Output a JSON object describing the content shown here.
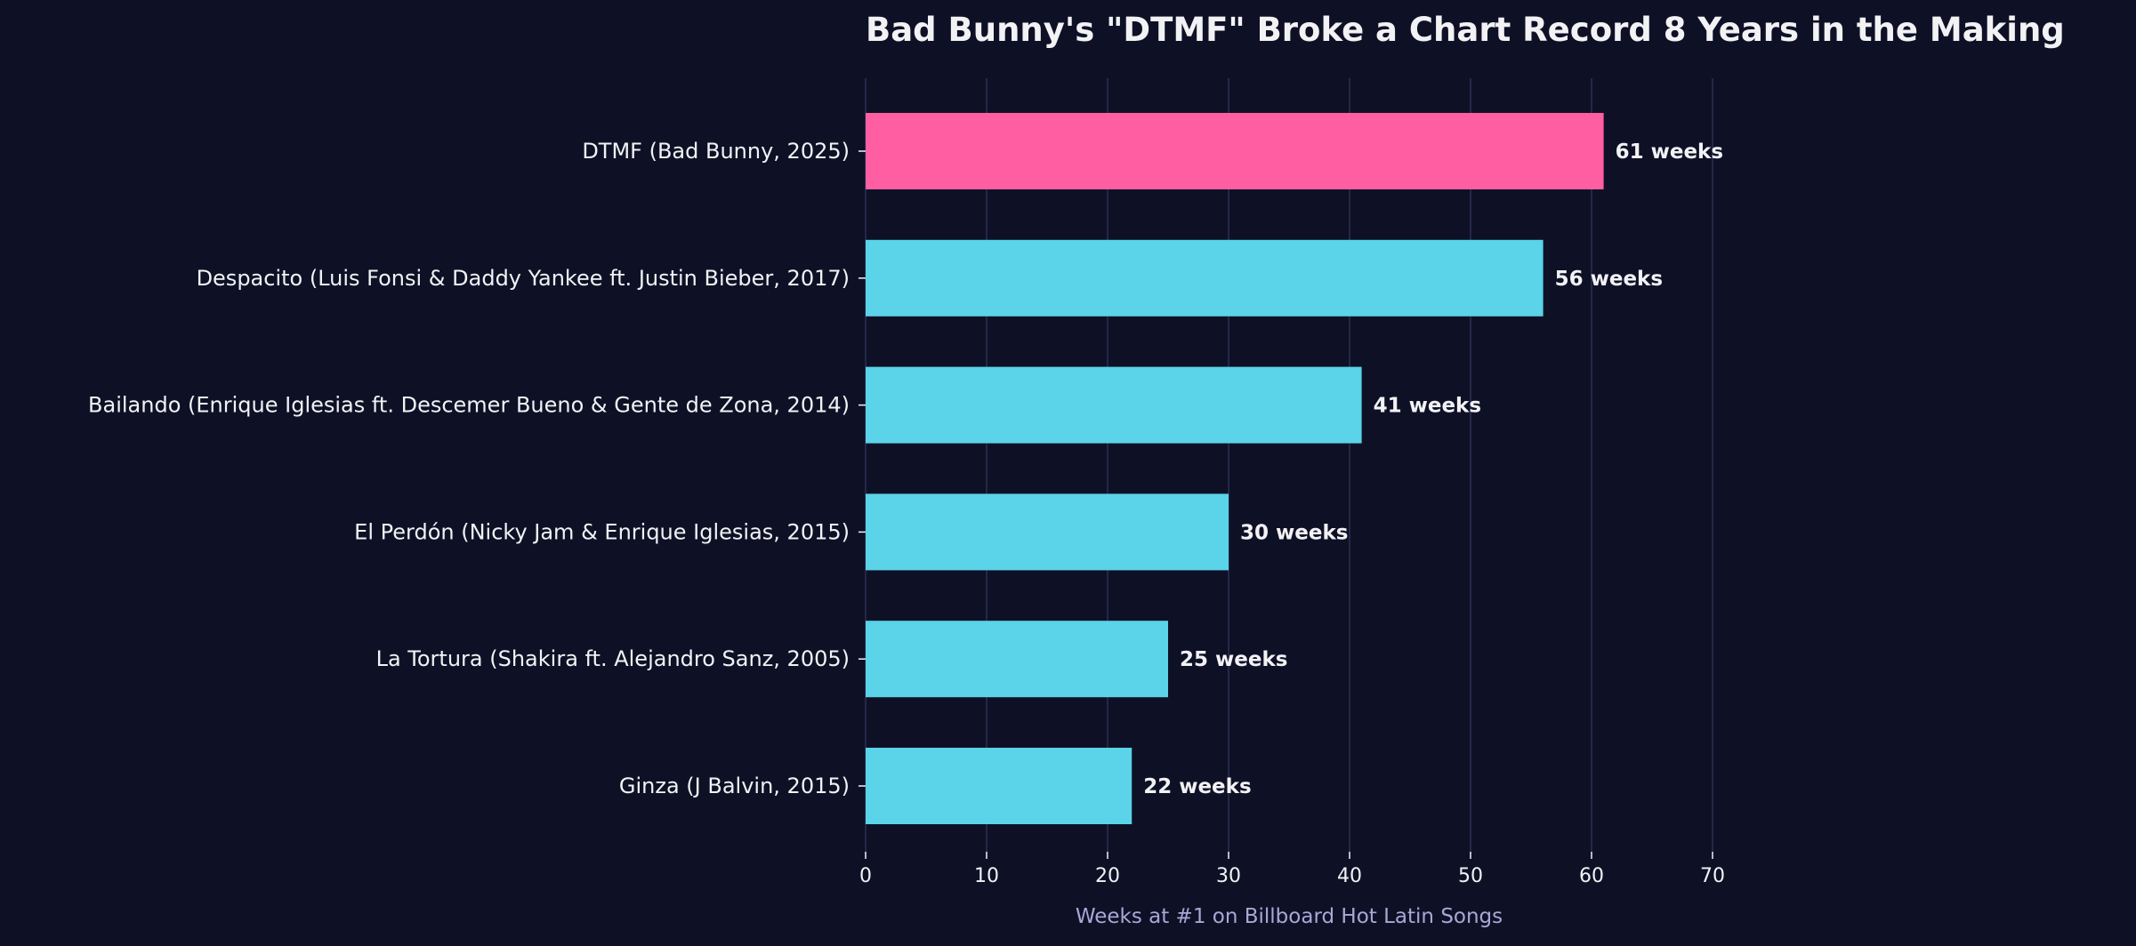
{
  "chart_data": {
    "type": "bar",
    "orientation": "horizontal",
    "title": "Bad Bunny's \"DTMF\" Broke a Chart Record 8 Years in the Making",
    "xlabel": "Weeks at #1 on Billboard Hot Latin Songs",
    "ylabel": "",
    "xlim": [
      0,
      70
    ],
    "xticks": [
      0,
      10,
      20,
      30,
      40,
      50,
      60,
      70
    ],
    "grid": "vertical",
    "categories": [
      "DTMF (Bad Bunny, 2025)",
      "Despacito (Luis Fonsi & Daddy Yankee ft. Justin Bieber, 2017)",
      "Bailando (Enrique Iglesias ft. Descemer Bueno & Gente de Zona, 2014)",
      "El Perdón (Nicky Jam & Enrique Iglesias, 2015)",
      "La Tortura (Shakira ft. Alejandro Sanz, 2005)",
      "Ginza (J Balvin, 2015)"
    ],
    "values": [
      61,
      56,
      41,
      30,
      25,
      22
    ],
    "value_labels": [
      "61 weeks",
      "56 weeks",
      "41 weeks",
      "30 weeks",
      "25 weeks",
      "22 weeks"
    ],
    "highlight_index": 0
  },
  "colors": {
    "background": "#0e1126",
    "highlight_bar": "#ff5fa2",
    "bar": "#5bd3e8",
    "text": "#f2f2f5",
    "axis_label": "#a7a8d6",
    "grid": "#2a2f52"
  }
}
